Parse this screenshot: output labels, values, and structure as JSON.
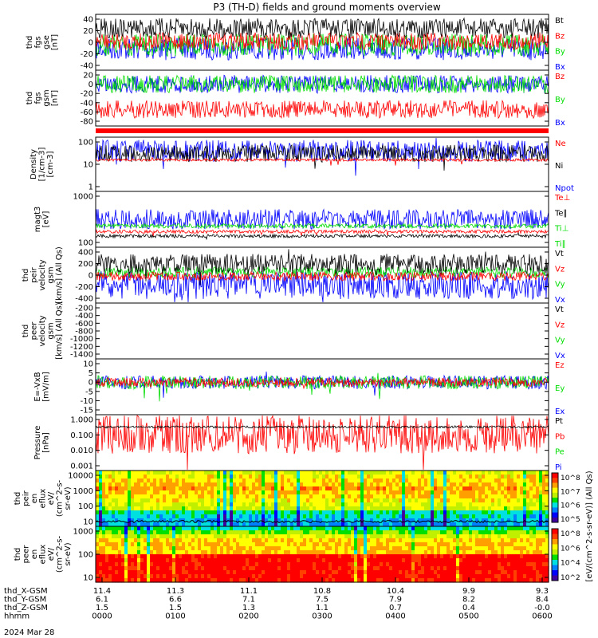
{
  "title": "P3 (TH-D) fields and ground moments overview",
  "date_label": "2024 Mar 28",
  "colors": {
    "black": "#000000",
    "red": "#ff0000",
    "green": "#00dd00",
    "blue": "#0000ff"
  },
  "colorbar": {
    "label": "[eV/(cm^2-s-sr-eV)] (All Qs)",
    "top_ticks": [
      "10^8",
      "10^7",
      "10^6",
      "10^5"
    ],
    "bottom_ticks": [
      "10^8",
      "10^6",
      "10^4",
      "10^2"
    ]
  },
  "panels": [
    {
      "id": "fgs-gse",
      "ylabel": [
        "thd",
        "fgs",
        "gse",
        "[nT]"
      ],
      "yticks": [
        "40",
        "20",
        "0",
        "-20",
        "-40"
      ],
      "legend": [
        {
          "text": "Bt",
          "color": "#000000"
        },
        {
          "text": "Bz",
          "color": "#ff0000"
        },
        {
          "text": "By",
          "color": "#00dd00"
        },
        {
          "text": "Bx",
          "color": "#0000ff"
        }
      ]
    },
    {
      "id": "fgs-gsm",
      "ylabel": [
        "thd",
        "fgs",
        "gsm",
        "[nT]"
      ],
      "yticks": [
        "20",
        "0",
        "-20",
        "-40",
        "-60",
        "-80"
      ],
      "legend": [
        {
          "text": "Bz",
          "color": "#ff0000"
        },
        {
          "text": "By",
          "color": "#00dd00"
        },
        {
          "text": "Bx",
          "color": "#0000ff"
        }
      ]
    },
    {
      "id": "density",
      "ylabel": [
        "Density",
        "[1/cm-3]",
        "[cm-3]"
      ],
      "yticks": [
        "100",
        "10",
        "1"
      ],
      "legend": [
        {
          "text": "Ne",
          "color": "#ff0000"
        },
        {
          "text": "Ni",
          "color": "#000000"
        },
        {
          "text": "Npot",
          "color": "#0000ff"
        }
      ]
    },
    {
      "id": "temp",
      "ylabel": [
        "magt3",
        "[eV]"
      ],
      "yticks": [
        "1000",
        "100"
      ],
      "legend": [
        {
          "text": "Te⊥",
          "color": "#ff0000"
        },
        {
          "text": "Te∥",
          "color": "#000000"
        },
        {
          "text": "Ti⊥",
          "color": "#00dd00"
        },
        {
          "text": "Ti∥",
          "color": "#00dd00"
        }
      ]
    },
    {
      "id": "peir-velocity",
      "ylabel": [
        "thd",
        "peir",
        "velocity",
        "gsm",
        "[km/s] (All Qs)"
      ],
      "yticks": [
        "400",
        "200",
        "0",
        "-200",
        "-400"
      ],
      "legend": [
        {
          "text": "Vt",
          "color": "#000000"
        },
        {
          "text": "Vz",
          "color": "#ff0000"
        },
        {
          "text": "Vy",
          "color": "#00dd00"
        },
        {
          "text": "Vx",
          "color": "#0000ff"
        }
      ]
    },
    {
      "id": "peer-velocity",
      "ylabel": [
        "thd",
        "peer",
        "velocity",
        "gsm",
        "[km/s] (All Qs)"
      ],
      "yticks": [
        "-200",
        "-400",
        "-600",
        "-800",
        "-1000",
        "-1200",
        "-1400"
      ],
      "legend": [
        {
          "text": "Vt",
          "color": "#000000"
        },
        {
          "text": "Vz",
          "color": "#ff0000"
        },
        {
          "text": "Vy",
          "color": "#00dd00"
        },
        {
          "text": "Vx",
          "color": "#0000ff"
        }
      ]
    },
    {
      "id": "efield",
      "ylabel": [
        "E=-VxB",
        "[mV/m]"
      ],
      "yticks": [
        "10",
        "5",
        "0",
        "-5",
        "-10",
        "-15"
      ],
      "legend": [
        {
          "text": "Ez",
          "color": "#ff0000"
        },
        {
          "text": "Ey",
          "color": "#00dd00"
        },
        {
          "text": "Ex",
          "color": "#0000ff"
        }
      ]
    },
    {
      "id": "pressure",
      "ylabel": [
        "Pressure",
        "[nPa]"
      ],
      "yticks": [
        "1.000",
        "0.100",
        "0.010",
        "0.001"
      ],
      "legend": [
        {
          "text": "Pt",
          "color": "#000000"
        },
        {
          "text": "Pb",
          "color": "#ff0000"
        },
        {
          "text": "Pe",
          "color": "#00dd00"
        },
        {
          "text": "Pi",
          "color": "#0000ff"
        }
      ]
    },
    {
      "id": "peir-eflux",
      "ylabel": [
        "thd",
        "peir",
        "en",
        "eflux",
        "eV/",
        "(cm^2-s-",
        "sr-eV)"
      ],
      "yticks": [
        "10000",
        "1000",
        "100",
        "10"
      ],
      "legend": []
    },
    {
      "id": "peer-eflux",
      "ylabel": [
        "thd",
        "peer",
        "en",
        "eflux",
        "eV/",
        "(cm^2-s-",
        "sr-eV)"
      ],
      "yticks": [
        "1000",
        "100",
        "10"
      ],
      "legend": []
    }
  ],
  "xaxis": {
    "rows": [
      {
        "label": "thd_X-GSM",
        "values": [
          "11.4",
          "11.3",
          "11.1",
          "10.8",
          "10.4",
          "9.9",
          "9.3"
        ]
      },
      {
        "label": "thd_Y-GSM",
        "values": [
          "6.1",
          "6.6",
          "7.1",
          "7.5",
          "7.9",
          "8.2",
          "8.4"
        ]
      },
      {
        "label": "thd_Z-GSM",
        "values": [
          "1.5",
          "1.5",
          "1.3",
          "1.1",
          "0.7",
          "0.4",
          "-0.0"
        ]
      },
      {
        "label": "hhmm",
        "values": [
          "0000",
          "0100",
          "0200",
          "0300",
          "0400",
          "0500",
          "0600"
        ]
      }
    ]
  }
}
